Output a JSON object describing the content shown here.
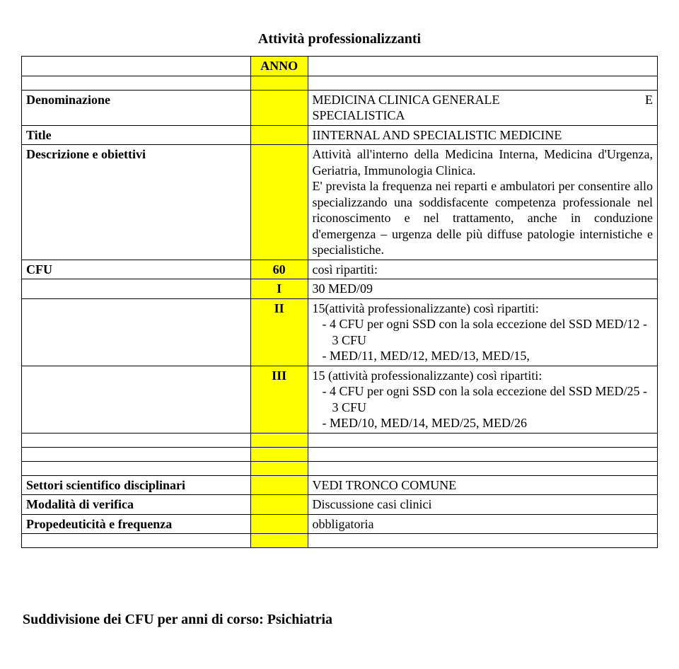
{
  "header": {
    "title": "Attività professionalizzanti"
  },
  "labels": {
    "anno": "ANNO",
    "denominazione": "Denominazione",
    "title": "Title",
    "descrizione": "Descrizione e obiettivi",
    "cfu": "CFU",
    "settori": "Settori scientifico disciplinari",
    "modalita": "Modalità di verifica",
    "propedeuticita": "Propedeuticità e frequenza"
  },
  "mid": {
    "cfu_value": "60",
    "year1": "I",
    "year2": "II",
    "year3": "III"
  },
  "content": {
    "denominazione_left": "MEDICINA   CLINICA   GENERALE",
    "denominazione_right": "E",
    "denominazione_line2": "SPECIALISTICA",
    "title_text": "IINTERNAL AND SPECIALISTIC MEDICINE",
    "descrizione_text": "Attività all'interno della Medicina Interna, Medicina d'Urgenza, Geriatria, Immunologia Clinica.\nE' prevista la frequenza nei reparti e ambulatori per consentire allo specializzando una soddisfacente competenza professionale nel riconoscimento e nel trattamento, anche in conduzione d'emergenza – urgenza delle più diffuse patologie internistiche e specialistiche.",
    "cfu_text": "così ripartiti:",
    "year1_text": "30 MED/09",
    "year2_header": "15(attività professionalizzante) così ripartiti:",
    "year2_bullets": [
      "4 CFU per ogni SSD con la sola eccezione del SSD MED/12 - 3 CFU",
      "MED/11, MED/12, MED/13,  MED/15,"
    ],
    "year3_header": "15 (attività professionalizzante) così ripartiti:",
    "year3_bullets": [
      "4 CFU per ogni SSD con la sola eccezione del SSD MED/25 - 3 CFU",
      "MED/10, MED/14,  MED/25, MED/26"
    ],
    "settori_text": "VEDI TRONCO COMUNE",
    "modalita_text": "Discussione casi clinici",
    "propedeuticita_text": "obbligatoria"
  },
  "footer": {
    "text": "Suddivisione dei CFU per anni di corso: Psichiatria"
  }
}
